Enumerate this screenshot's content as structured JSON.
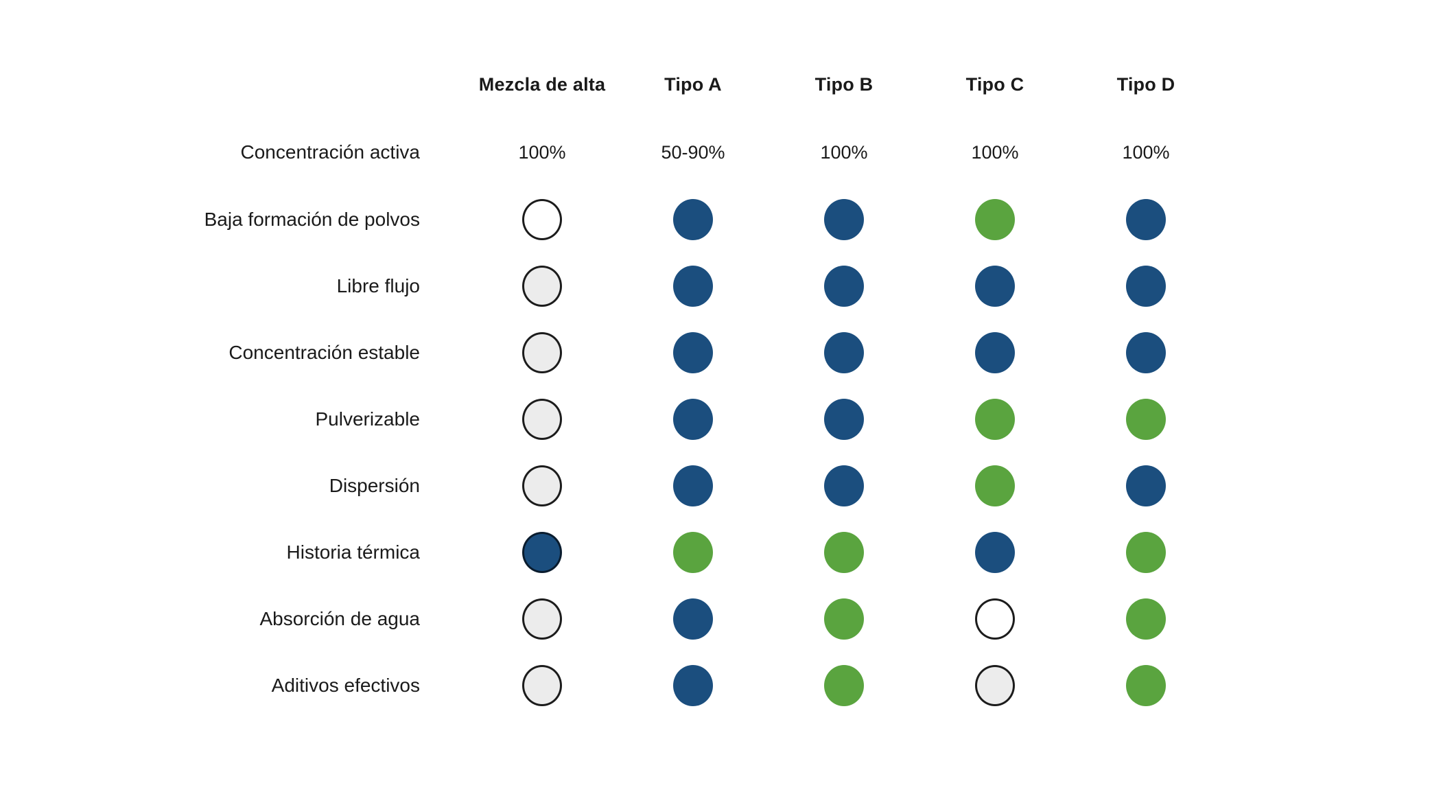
{
  "chart_data": {
    "type": "table",
    "title": "",
    "columns": [
      "Mezcla de alta",
      "Tipo A",
      "Tipo B",
      "Tipo C",
      "Tipo D"
    ],
    "concentration": {
      "label": "Concentración activa",
      "values": [
        "100%",
        "50-90%",
        "100%",
        "100%",
        "100%"
      ]
    },
    "dot_rows": [
      {
        "label": "Baja formación de polvos",
        "dots": [
          "white",
          "blue",
          "blue",
          "green",
          "blue"
        ]
      },
      {
        "label": "Libre flujo",
        "dots": [
          "gray",
          "blue",
          "blue",
          "blue",
          "blue"
        ]
      },
      {
        "label": "Concentración estable",
        "dots": [
          "gray",
          "blue",
          "blue",
          "blue",
          "blue"
        ]
      },
      {
        "label": "Pulverizable",
        "dots": [
          "gray",
          "blue",
          "blue",
          "green",
          "green"
        ]
      },
      {
        "label": "Dispersión",
        "dots": [
          "gray",
          "blue",
          "blue",
          "green",
          "blue"
        ]
      },
      {
        "label": "Historia térmica",
        "dots": [
          "blue-outlined",
          "green",
          "green",
          "blue",
          "green"
        ]
      },
      {
        "label": "Absorción de agua",
        "dots": [
          "gray",
          "blue",
          "green",
          "white",
          "green"
        ]
      },
      {
        "label": "Aditivos efectivos",
        "dots": [
          "gray",
          "blue",
          "green",
          "gray",
          "green"
        ]
      }
    ],
    "colors": {
      "blue": "#1B4E7E",
      "green": "#5AA43F",
      "gray": "#ECECEC",
      "white": "#FFFFFF",
      "outline": "#1C1C1C",
      "blue_ring": "#0A1C2E"
    }
  }
}
